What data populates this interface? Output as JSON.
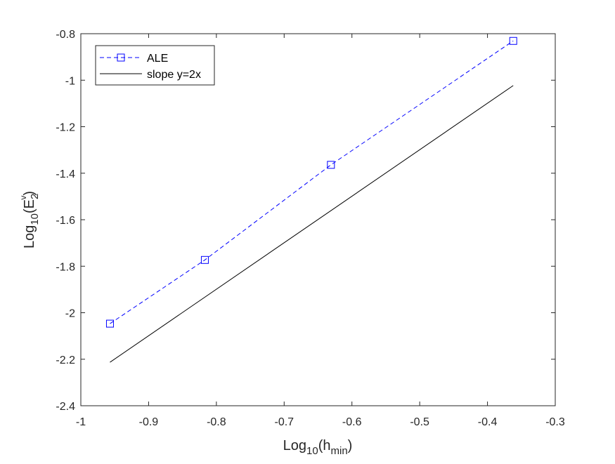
{
  "chart_data": {
    "type": "line",
    "title": "",
    "xlabel": {
      "base": "Log",
      "sub": "10",
      "paren_open": "(h",
      "var_sub": "min",
      "paren_close": ")"
    },
    "ylabel": {
      "base": "Log",
      "sub": "10",
      "paren_open": "(E",
      "var_sub": "2",
      "var_sup": "v",
      "paren_close": ")"
    },
    "xlim": [
      -1,
      -0.3
    ],
    "ylim": [
      -2.4,
      -0.8
    ],
    "xticks": [
      -1,
      -0.9,
      -0.8,
      -0.7,
      -0.6,
      -0.5,
      -0.4,
      -0.3
    ],
    "xtick_labels": [
      "-1",
      "-0.9",
      "-0.8",
      "-0.7",
      "-0.6",
      "-0.5",
      "-0.4",
      "-0.3"
    ],
    "yticks": [
      -2.4,
      -2.2,
      -2,
      -1.8,
      -1.6,
      -1.4,
      -1.2,
      -1,
      -0.8
    ],
    "ytick_labels": [
      "-2.4",
      "-2.2",
      "-2",
      "-1.8",
      "-1.6",
      "-1.4",
      "-1.2",
      "-1",
      "-0.8"
    ],
    "grid": false,
    "legend_position": "top-left",
    "series": [
      {
        "name": "ALE",
        "color": "#0000ff",
        "line_style": "dashed",
        "marker": "square",
        "x": [
          -0.957,
          -0.817,
          -0.631,
          -0.362
        ],
        "y": [
          -2.047,
          -1.773,
          -1.364,
          -0.831
        ]
      },
      {
        "name": "slope y=2x",
        "color": "#000000",
        "line_style": "solid",
        "marker": "none",
        "x": [
          -0.957,
          -0.362
        ],
        "y": [
          -2.213,
          -1.023
        ]
      }
    ]
  }
}
